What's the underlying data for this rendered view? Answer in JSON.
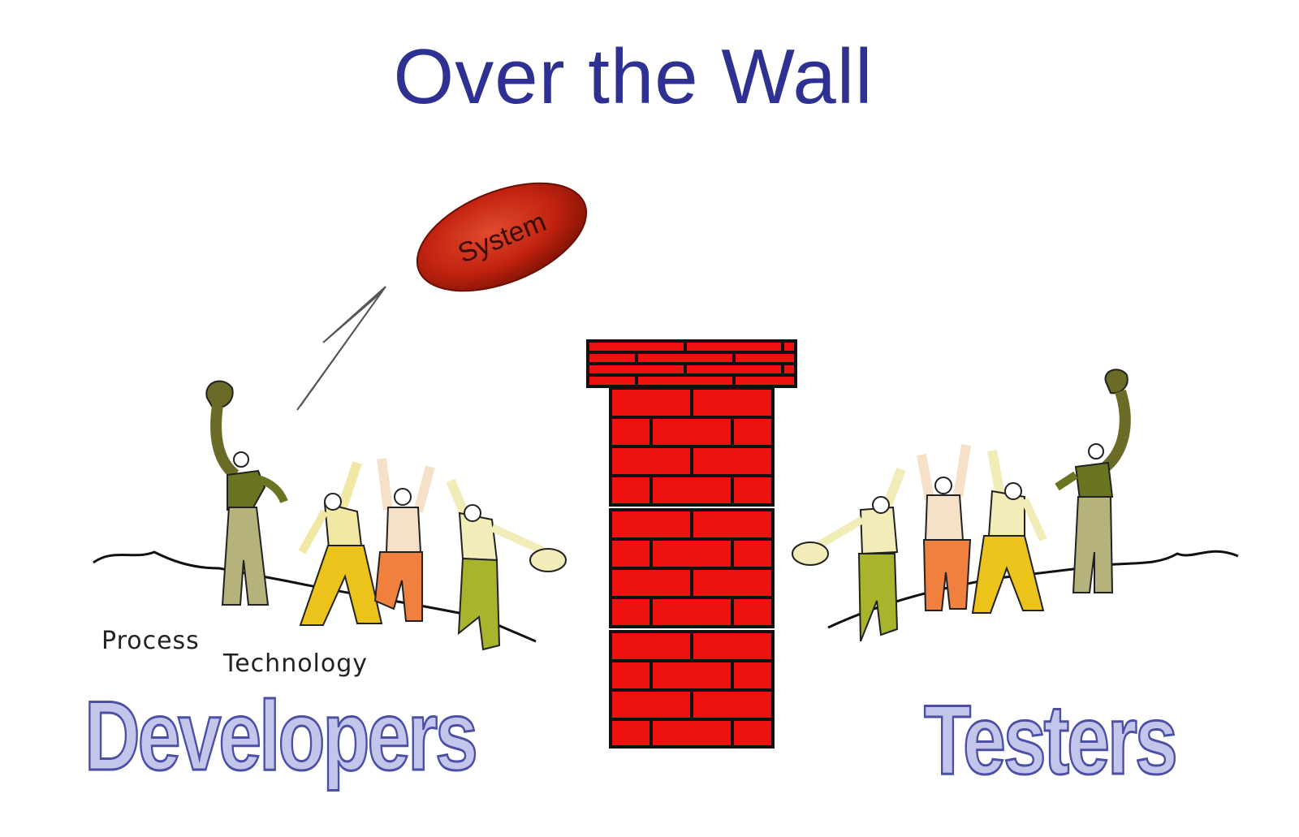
{
  "title": "Over the Wall",
  "frisbee": {
    "label": "System",
    "color": "#c0220f"
  },
  "wall": {
    "brick_color": "#ee1111",
    "mortar_color": "#111111"
  },
  "developers": {
    "heading": "Developers",
    "notes": [
      "Process",
      "Technology"
    ]
  },
  "testers": {
    "heading": "Testers"
  },
  "colors": {
    "title": "#2e3192",
    "heading_fill": "#c3c6ea",
    "heading_stroke": "#4b4fa6"
  }
}
